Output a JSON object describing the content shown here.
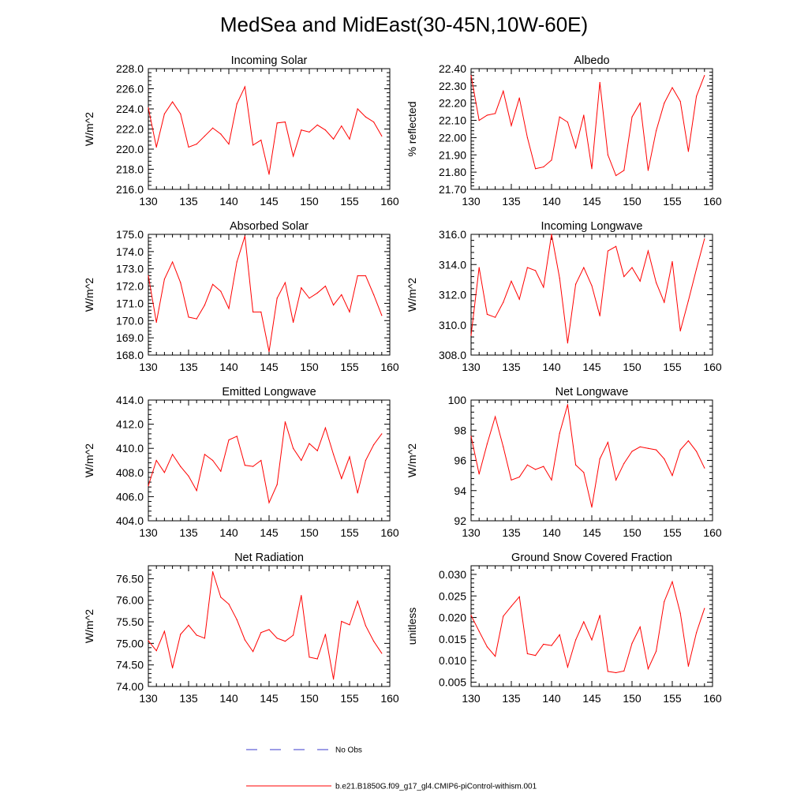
{
  "page": {
    "title": "MedSea and MidEast(30-45N,10W-60E)"
  },
  "legend": [
    {
      "label": "No Obs",
      "color": "#3b3bcc",
      "dash": "dashed"
    },
    {
      "label": "b.e21.B1850G.f09_g17_gl4.CMIP6-piControl-withism.001",
      "color": "#ff0000",
      "dash": "solid"
    }
  ],
  "chart_data": [
    {
      "type": "line",
      "title": "Incoming Solar",
      "xlabel": "",
      "ylabel": "W/m^2",
      "xlim": [
        130,
        160
      ],
      "ylim": [
        216,
        228
      ],
      "xticks": [
        "130",
        "135",
        "140",
        "145",
        "150",
        "155",
        "160"
      ],
      "yticks": [
        "216.0",
        "218.0",
        "220.0",
        "222.0",
        "224.0",
        "226.0",
        "228.0"
      ],
      "series": [
        {
          "color": "#ff0000",
          "x": [
            130,
            131,
            132,
            133,
            134,
            135,
            136,
            137,
            138,
            139,
            140,
            141,
            142,
            143,
            144,
            145,
            146,
            147,
            148,
            149,
            150,
            151,
            152,
            153,
            154,
            155,
            156,
            157,
            158,
            159
          ],
          "values": [
            224.1,
            220.2,
            223.5,
            224.7,
            223.5,
            220.2,
            220.5,
            221.3,
            222.1,
            221.5,
            220.5,
            224.5,
            226.2,
            220.4,
            220.9,
            217.5,
            222.6,
            222.7,
            219.3,
            221.9,
            221.7,
            222.4,
            221.9,
            221.0,
            222.3,
            221.0,
            224.0,
            223.2,
            222.7,
            221.3
          ]
        }
      ]
    },
    {
      "type": "line",
      "title": "Albedo",
      "xlabel": "",
      "ylabel": "% reflected",
      "xlim": [
        130,
        160
      ],
      "ylim": [
        21.7,
        22.4
      ],
      "xticks": [
        "130",
        "135",
        "140",
        "145",
        "150",
        "155",
        "160"
      ],
      "yticks": [
        "21.70",
        "21.80",
        "21.90",
        "22.00",
        "22.10",
        "22.20",
        "22.30",
        "22.40"
      ],
      "series": [
        {
          "color": "#ff0000",
          "x": [
            130,
            131,
            132,
            133,
            134,
            135,
            136,
            137,
            138,
            139,
            140,
            141,
            142,
            143,
            144,
            145,
            146,
            147,
            148,
            149,
            150,
            151,
            152,
            153,
            154,
            155,
            156,
            157,
            158,
            159
          ],
          "values": [
            22.36,
            22.1,
            22.13,
            22.14,
            22.27,
            22.07,
            22.23,
            22.0,
            21.82,
            21.83,
            21.87,
            22.12,
            22.09,
            21.94,
            22.13,
            21.82,
            22.32,
            21.9,
            21.78,
            21.81,
            22.12,
            22.2,
            21.81,
            22.04,
            22.2,
            22.29,
            22.21,
            21.92,
            22.24,
            22.36
          ]
        }
      ]
    },
    {
      "type": "line",
      "title": "Absorbed Solar",
      "xlabel": "",
      "ylabel": "W/m^2",
      "xlim": [
        130,
        160
      ],
      "ylim": [
        168,
        175
      ],
      "xticks": [
        "130",
        "135",
        "140",
        "145",
        "150",
        "155",
        "160"
      ],
      "yticks": [
        "168.0",
        "169.0",
        "170.0",
        "171.0",
        "172.0",
        "173.0",
        "174.0",
        "175.0"
      ],
      "series": [
        {
          "color": "#ff0000",
          "x": [
            130,
            131,
            132,
            133,
            134,
            135,
            136,
            137,
            138,
            139,
            140,
            141,
            142,
            143,
            144,
            145,
            146,
            147,
            148,
            149,
            150,
            151,
            152,
            153,
            154,
            155,
            156,
            157,
            158,
            159
          ],
          "values": [
            172.6,
            169.9,
            172.4,
            173.4,
            172.2,
            170.2,
            170.1,
            170.9,
            172.1,
            171.7,
            170.7,
            173.4,
            174.9,
            170.5,
            170.5,
            168.2,
            171.3,
            172.2,
            169.9,
            171.9,
            171.3,
            171.6,
            172.0,
            170.9,
            171.5,
            170.5,
            172.6,
            172.6,
            171.5,
            170.3
          ]
        }
      ]
    },
    {
      "type": "line",
      "title": "Incoming Longwave",
      "xlabel": "",
      "ylabel": "W/m^2",
      "xlim": [
        130,
        160
      ],
      "ylim": [
        308,
        316
      ],
      "xticks": [
        "130",
        "135",
        "140",
        "145",
        "150",
        "155",
        "160"
      ],
      "yticks": [
        "308.0",
        "310.0",
        "312.0",
        "314.0",
        "316.0"
      ],
      "series": [
        {
          "color": "#ff0000",
          "x": [
            130,
            131,
            132,
            133,
            134,
            135,
            136,
            137,
            138,
            139,
            140,
            141,
            142,
            143,
            144,
            145,
            146,
            147,
            148,
            149,
            150,
            151,
            152,
            153,
            154,
            155,
            156,
            157,
            158,
            159
          ],
          "values": [
            309.3,
            313.8,
            310.7,
            310.5,
            311.5,
            312.9,
            311.7,
            313.8,
            313.6,
            312.5,
            316.0,
            313.1,
            308.8,
            312.7,
            313.8,
            312.6,
            310.6,
            314.9,
            315.2,
            313.2,
            313.8,
            312.9,
            314.9,
            312.8,
            311.5,
            314.2,
            309.6,
            311.6,
            313.7,
            315.7
          ]
        }
      ]
    },
    {
      "type": "line",
      "title": "Emitted Longwave",
      "xlabel": "",
      "ylabel": "W/m^2",
      "xlim": [
        130,
        160
      ],
      "ylim": [
        404,
        414
      ],
      "xticks": [
        "130",
        "135",
        "140",
        "145",
        "150",
        "155",
        "160"
      ],
      "yticks": [
        "404.0",
        "406.0",
        "408.0",
        "410.0",
        "412.0",
        "414.0"
      ],
      "series": [
        {
          "color": "#ff0000",
          "x": [
            130,
            131,
            132,
            133,
            134,
            135,
            136,
            137,
            138,
            139,
            140,
            141,
            142,
            143,
            144,
            145,
            146,
            147,
            148,
            149,
            150,
            151,
            152,
            153,
            154,
            155,
            156,
            157,
            158,
            159
          ],
          "values": [
            406.9,
            409.0,
            408.0,
            409.5,
            408.5,
            407.7,
            406.5,
            409.5,
            409.0,
            408.1,
            410.7,
            411.0,
            408.6,
            408.5,
            409.0,
            405.5,
            407.0,
            412.2,
            410.0,
            409.0,
            410.4,
            409.8,
            411.7,
            409.5,
            407.5,
            409.3,
            406.3,
            409.0,
            410.3,
            411.2
          ]
        }
      ]
    },
    {
      "type": "line",
      "title": "Net Longwave",
      "xlabel": "",
      "ylabel": "W/m^2",
      "xlim": [
        130,
        160
      ],
      "ylim": [
        92,
        100
      ],
      "xticks": [
        "130",
        "135",
        "140",
        "145",
        "150",
        "155",
        "160"
      ],
      "yticks": [
        "92",
        "94",
        "96",
        "98",
        "100"
      ],
      "series": [
        {
          "color": "#ff0000",
          "x": [
            130,
            131,
            132,
            133,
            134,
            135,
            136,
            137,
            138,
            139,
            140,
            141,
            142,
            143,
            144,
            145,
            146,
            147,
            148,
            149,
            150,
            151,
            152,
            153,
            154,
            155,
            156,
            157,
            158,
            159
          ],
          "values": [
            97.6,
            95.1,
            97.1,
            98.9,
            96.9,
            94.7,
            94.9,
            95.7,
            95.4,
            95.6,
            94.7,
            97.8,
            99.7,
            95.7,
            95.2,
            92.9,
            96.1,
            97.2,
            94.7,
            95.8,
            96.6,
            96.9,
            96.8,
            96.7,
            96.1,
            95.0,
            96.7,
            97.3,
            96.6,
            95.5
          ]
        }
      ]
    },
    {
      "type": "line",
      "title": "Net Radiation",
      "xlabel": "",
      "ylabel": "W/m^2",
      "xlim": [
        130,
        160
      ],
      "ylim": [
        74,
        76.8
      ],
      "xticks": [
        "130",
        "135",
        "140",
        "145",
        "150",
        "155",
        "160"
      ],
      "yticks": [
        "74.00",
        "74.50",
        "75.00",
        "75.50",
        "76.00",
        "76.50"
      ],
      "series": [
        {
          "color": "#ff0000",
          "x": [
            130,
            131,
            132,
            133,
            134,
            135,
            136,
            137,
            138,
            139,
            140,
            141,
            142,
            143,
            144,
            145,
            146,
            147,
            148,
            149,
            150,
            151,
            152,
            153,
            154,
            155,
            156,
            157,
            158,
            159
          ],
          "values": [
            75.06,
            74.83,
            75.28,
            74.43,
            75.21,
            75.42,
            75.19,
            75.12,
            76.66,
            76.07,
            75.91,
            75.55,
            75.08,
            74.81,
            75.25,
            75.32,
            75.12,
            75.05,
            75.19,
            76.11,
            74.68,
            74.64,
            75.21,
            74.17,
            75.51,
            75.43,
            75.98,
            75.41,
            75.05,
            74.77
          ]
        }
      ]
    },
    {
      "type": "line",
      "title": "Ground Snow Covered Fraction",
      "xlabel": "",
      "ylabel": "unitless",
      "xlim": [
        130,
        160
      ],
      "ylim": [
        0.004,
        0.032
      ],
      "xticks": [
        "130",
        "135",
        "140",
        "145",
        "150",
        "155",
        "160"
      ],
      "yticks": [
        "0.005",
        "0.010",
        "0.015",
        "0.020",
        "0.025",
        "0.030"
      ],
      "series": [
        {
          "color": "#ff0000",
          "x": [
            130,
            131,
            132,
            133,
            134,
            135,
            136,
            137,
            138,
            139,
            140,
            141,
            142,
            143,
            144,
            145,
            146,
            147,
            148,
            149,
            150,
            151,
            152,
            153,
            154,
            155,
            156,
            157,
            158,
            159
          ],
          "values": [
            0.0205,
            0.0168,
            0.0132,
            0.011,
            0.0203,
            0.0226,
            0.0248,
            0.0116,
            0.0112,
            0.0138,
            0.0135,
            0.016,
            0.0085,
            0.0148,
            0.019,
            0.0148,
            0.0205,
            0.0075,
            0.0072,
            0.0076,
            0.014,
            0.0178,
            0.0081,
            0.0122,
            0.0237,
            0.0283,
            0.021,
            0.0087,
            0.0165,
            0.0221
          ]
        }
      ]
    }
  ]
}
